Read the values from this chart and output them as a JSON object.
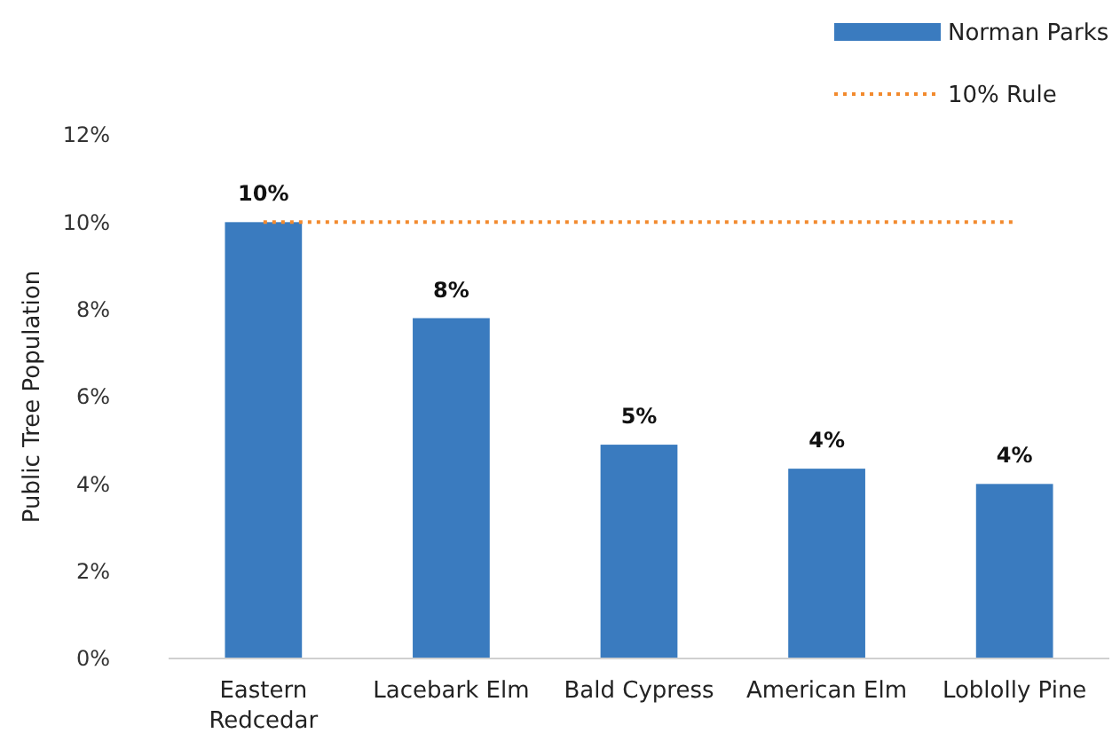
{
  "chart_data": {
    "type": "bar",
    "ylabel": "Public Tree Population",
    "categories": [
      "Eastern Redcedar",
      "Lacebark Elm",
      "Bald Cypress",
      "American Elm",
      "Loblolly Pine"
    ],
    "series": [
      {
        "name": "Norman Parks",
        "color": "#3a7bbf",
        "values": [
          10,
          7.8,
          4.9,
          4.35,
          4.0
        ],
        "value_labels": [
          "10%",
          "8%",
          "5%",
          "4%",
          "4%"
        ]
      }
    ],
    "ylim": [
      0,
      12
    ],
    "yticks": [
      {
        "value": 0,
        "label": "0%"
      },
      {
        "value": 2,
        "label": "2%"
      },
      {
        "value": 4,
        "label": "4%"
      },
      {
        "value": 6,
        "label": "6%"
      },
      {
        "value": 8,
        "label": "8%"
      },
      {
        "value": 10,
        "label": "10%"
      },
      {
        "value": 12,
        "label": "12%"
      }
    ],
    "ref_lines": [
      {
        "axis": "y",
        "value": 10,
        "label": "10% Rule",
        "color": "#f28a2e",
        "line_style": "dotted"
      }
    ],
    "legend": "top right",
    "grid": false
  }
}
